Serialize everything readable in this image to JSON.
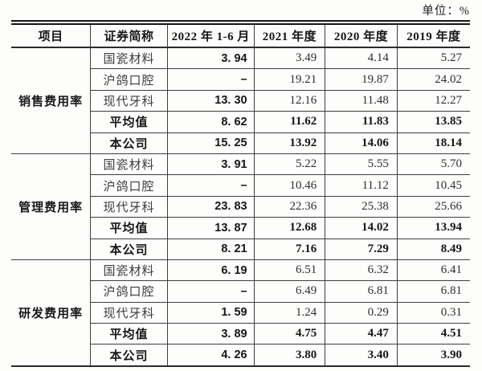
{
  "unit_label": "单位：%",
  "table": {
    "headers": [
      "项目",
      "证券简称",
      "2022 年 1-6 月",
      "2021 年度",
      "2020 年度",
      "2019 年度"
    ],
    "sections": [
      {
        "category": "销售费用率",
        "rows": [
          {
            "name": "国瓷材料",
            "bold": false,
            "values": [
              "3. 94",
              "3.49",
              "4.14",
              "5.27"
            ]
          },
          {
            "name": "沪鸽口腔",
            "bold": false,
            "values": [
              "–",
              "19.21",
              "19.87",
              "24.02"
            ]
          },
          {
            "name": "现代牙科",
            "bold": false,
            "values": [
              "13. 30",
              "12.16",
              "11.48",
              "12.27"
            ]
          },
          {
            "name": "平均值",
            "bold": true,
            "values": [
              "8. 62",
              "11.62",
              "11.83",
              "13.85"
            ]
          },
          {
            "name": "本公司",
            "bold": true,
            "values": [
              "15. 25",
              "13.92",
              "14.06",
              "18.14"
            ]
          }
        ]
      },
      {
        "category": "管理费用率",
        "rows": [
          {
            "name": "国瓷材料",
            "bold": false,
            "values": [
              "3. 91",
              "5.22",
              "5.55",
              "5.70"
            ]
          },
          {
            "name": "沪鸽口腔",
            "bold": false,
            "values": [
              "–",
              "10.46",
              "11.12",
              "10.45"
            ]
          },
          {
            "name": "现代牙科",
            "bold": false,
            "values": [
              "23. 83",
              "22.36",
              "25.38",
              "25.66"
            ]
          },
          {
            "name": "平均值",
            "bold": true,
            "values": [
              "13. 87",
              "12.68",
              "14.02",
              "13.94"
            ]
          },
          {
            "name": "本公司",
            "bold": true,
            "values": [
              "8. 21",
              "7.16",
              "7.29",
              "8.49"
            ]
          }
        ]
      },
      {
        "category": "研发费用率",
        "rows": [
          {
            "name": "国瓷材料",
            "bold": false,
            "values": [
              "6. 19",
              "6.51",
              "6.32",
              "6.41"
            ]
          },
          {
            "name": "沪鸽口腔",
            "bold": false,
            "values": [
              "–",
              "6.49",
              "6.81",
              "6.81"
            ]
          },
          {
            "name": "现代牙科",
            "bold": false,
            "values": [
              "1. 59",
              "1.24",
              "0.29",
              "0.31"
            ]
          },
          {
            "name": "平均值",
            "bold": true,
            "values": [
              "3. 89",
              "4.75",
              "4.47",
              "4.51"
            ]
          },
          {
            "name": "本公司",
            "bold": true,
            "values": [
              "4. 26",
              "3.80",
              "3.40",
              "3.90"
            ]
          }
        ]
      }
    ]
  },
  "colors": {
    "text": "#1f1f1f",
    "border": "#3d3d3d",
    "top_rule": "#151515",
    "background": "#fdfdfc"
  }
}
